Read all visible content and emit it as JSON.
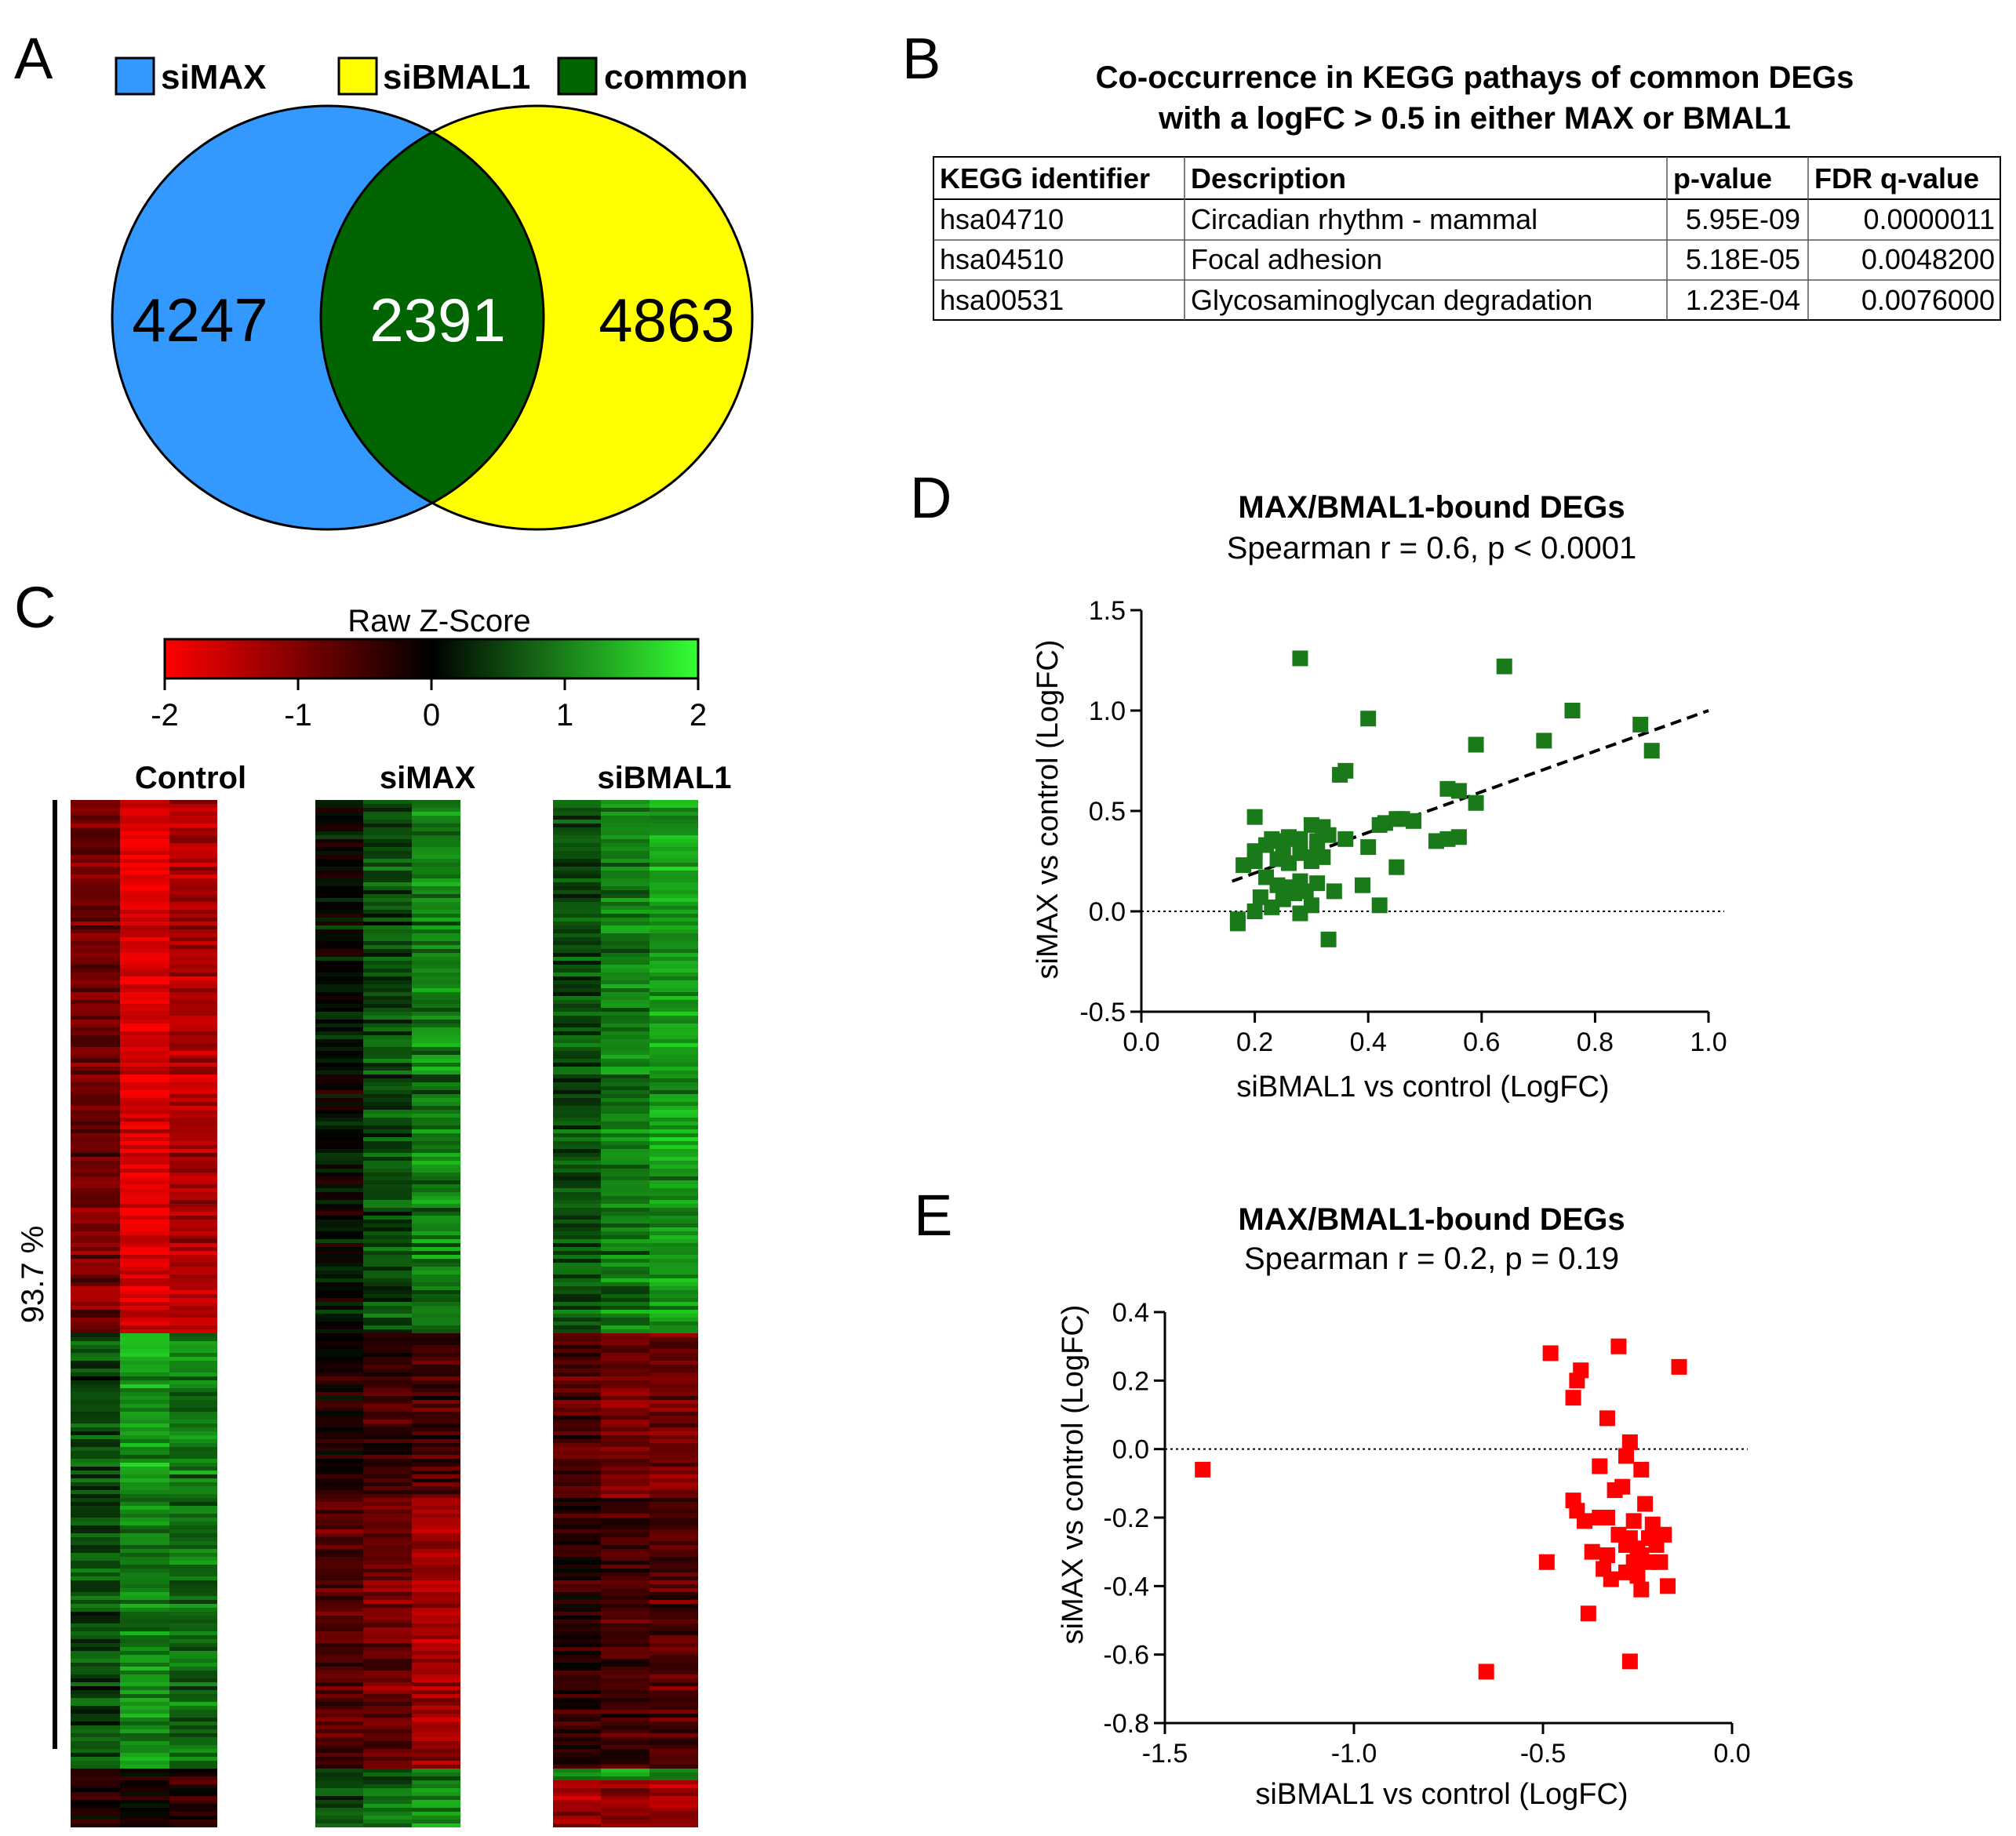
{
  "panels": {
    "a": "A",
    "b": "B",
    "c": "C",
    "d": "D",
    "e": "E"
  },
  "colors": {
    "simax": "#3399ff",
    "sibmal1": "#ffff00",
    "common": "#006400",
    "scatter_d": "#1a7a1a",
    "scatter_e": "#ff0000"
  },
  "venn": {
    "legend": [
      {
        "label": "siMAX",
        "color": "#3399ff"
      },
      {
        "label": "siBMAL1",
        "color": "#ffff00"
      },
      {
        "label": "common",
        "color": "#006400"
      }
    ],
    "counts": {
      "simax": "4247",
      "common": "2391",
      "sibmal1": "4863"
    }
  },
  "kegg": {
    "title_line1": "Co-occurrence in KEGG pathays of common DEGs",
    "title_line2": "with a logFC > 0.5 in either MAX or BMAL1",
    "headers": [
      "KEGG identifier",
      "Description",
      "p-value",
      "FDR q-value"
    ],
    "rows": [
      [
        "hsa04710",
        "Circadian rhythm - mammal",
        "5.95E-09",
        "0.0000011"
      ],
      [
        "hsa04510",
        "Focal adhesion",
        "5.18E-05",
        "0.0048200"
      ],
      [
        "hsa00531",
        "Glycosaminoglycan degradation",
        "1.23E-04",
        "0.0076000"
      ]
    ]
  },
  "heatmap": {
    "colorbar_title": "Raw Z-Score",
    "colorbar_ticks": [
      "-2",
      "-1",
      "0",
      "1",
      "2"
    ],
    "groups": [
      "Control",
      "siMAX",
      "siBMAL1"
    ],
    "percent_label": "93.7 %"
  },
  "chart_data": [
    {
      "type": "scatter",
      "panel": "D",
      "title": "MAX/BMAL1-bound DEGs",
      "subtitle": "Spearman r = 0.6, p < 0.0001",
      "xlabel": "siBMAL1 vs control (LogFC)",
      "ylabel": "siMAX vs control (LogFC)",
      "xlim": [
        0.0,
        1.0
      ],
      "ylim": [
        -0.5,
        1.5
      ],
      "xticks": [
        "0.0",
        "0.2",
        "0.4",
        "0.6",
        "0.8",
        "1.0"
      ],
      "yticks": [
        "-0.5",
        "0.0",
        "0.5",
        "1.0",
        "1.5"
      ],
      "xticks_v": [
        0.0,
        0.2,
        0.4,
        0.6,
        0.8,
        1.0
      ],
      "yticks_v": [
        -0.5,
        0.0,
        0.5,
        1.0,
        1.5
      ],
      "fit_line": [
        [
          0.16,
          0.15
        ],
        [
          1.0,
          1.0
        ]
      ],
      "points": [
        [
          0.28,
          1.26
        ],
        [
          0.64,
          1.22
        ],
        [
          0.76,
          1.0
        ],
        [
          0.4,
          0.96
        ],
        [
          0.88,
          0.93
        ],
        [
          0.71,
          0.85
        ],
        [
          0.9,
          0.8
        ],
        [
          0.59,
          0.83
        ],
        [
          0.36,
          0.7
        ],
        [
          0.35,
          0.68
        ],
        [
          0.54,
          0.61
        ],
        [
          0.56,
          0.6
        ],
        [
          0.59,
          0.54
        ],
        [
          0.2,
          0.47
        ],
        [
          0.45,
          0.46
        ],
        [
          0.46,
          0.46
        ],
        [
          0.48,
          0.45
        ],
        [
          0.43,
          0.44
        ],
        [
          0.42,
          0.43
        ],
        [
          0.3,
          0.43
        ],
        [
          0.32,
          0.42
        ],
        [
          0.33,
          0.38
        ],
        [
          0.26,
          0.37
        ],
        [
          0.23,
          0.36
        ],
        [
          0.27,
          0.36
        ],
        [
          0.24,
          0.35
        ],
        [
          0.28,
          0.36
        ],
        [
          0.31,
          0.35
        ],
        [
          0.36,
          0.36
        ],
        [
          0.54,
          0.36
        ],
        [
          0.52,
          0.35
        ],
        [
          0.56,
          0.37
        ],
        [
          0.22,
          0.33
        ],
        [
          0.31,
          0.32
        ],
        [
          0.4,
          0.32
        ],
        [
          0.2,
          0.3
        ],
        [
          0.25,
          0.3
        ],
        [
          0.28,
          0.29
        ],
        [
          0.3,
          0.27
        ],
        [
          0.24,
          0.26
        ],
        [
          0.2,
          0.25
        ],
        [
          0.18,
          0.23
        ],
        [
          0.26,
          0.24
        ],
        [
          0.3,
          0.25
        ],
        [
          0.32,
          0.27
        ],
        [
          0.45,
          0.22
        ],
        [
          0.22,
          0.17
        ],
        [
          0.28,
          0.15
        ],
        [
          0.31,
          0.14
        ],
        [
          0.24,
          0.13
        ],
        [
          0.26,
          0.12
        ],
        [
          0.34,
          0.1
        ],
        [
          0.27,
          0.09
        ],
        [
          0.29,
          0.1
        ],
        [
          0.39,
          0.13
        ],
        [
          0.21,
          0.07
        ],
        [
          0.25,
          0.06
        ],
        [
          0.23,
          0.02
        ],
        [
          0.3,
          0.03
        ],
        [
          0.42,
          0.03
        ],
        [
          0.2,
          0.0
        ],
        [
          0.28,
          -0.01
        ],
        [
          0.17,
          -0.04
        ],
        [
          0.17,
          -0.06
        ],
        [
          0.33,
          -0.14
        ]
      ]
    },
    {
      "type": "scatter",
      "panel": "E",
      "title": "MAX/BMAL1-bound DEGs",
      "subtitle": "Spearman r = 0.2, p = 0.19",
      "xlabel": "siBMAL1 vs control (LogFC)",
      "ylabel": "siMAX vs control (LogFC)",
      "xlim": [
        -1.5,
        0.0
      ],
      "ylim": [
        -0.8,
        0.4
      ],
      "xticks": [
        "-1.5",
        "-1.0",
        "-0.5",
        "0.0"
      ],
      "yticks": [
        "0.4",
        "0.2",
        "0.0",
        "-0.2",
        "-0.4",
        "-0.6",
        "-0.8"
      ],
      "xticks_v": [
        -1.5,
        -1.0,
        -0.5,
        0.0
      ],
      "yticks_v": [
        0.4,
        0.2,
        0.0,
        -0.2,
        -0.4,
        -0.6,
        -0.8
      ],
      "points": [
        [
          -1.4,
          -0.06
        ],
        [
          -0.48,
          0.28
        ],
        [
          -0.3,
          0.3
        ],
        [
          -0.14,
          0.24
        ],
        [
          -0.4,
          0.23
        ],
        [
          -0.41,
          0.2
        ],
        [
          -0.42,
          0.15
        ],
        [
          -0.33,
          0.09
        ],
        [
          -0.27,
          0.02
        ],
        [
          -0.28,
          -0.02
        ],
        [
          -0.35,
          -0.05
        ],
        [
          -0.24,
          -0.06
        ],
        [
          -0.42,
          -0.15
        ],
        [
          -0.41,
          -0.18
        ],
        [
          -0.29,
          -0.11
        ],
        [
          -0.31,
          -0.12
        ],
        [
          -0.23,
          -0.16
        ],
        [
          -0.33,
          -0.2
        ],
        [
          -0.35,
          -0.2
        ],
        [
          -0.26,
          -0.21
        ],
        [
          -0.21,
          -0.22
        ],
        [
          -0.39,
          -0.21
        ],
        [
          -0.3,
          -0.25
        ],
        [
          -0.18,
          -0.25
        ],
        [
          -0.27,
          -0.26
        ],
        [
          -0.22,
          -0.26
        ],
        [
          -0.25,
          -0.29
        ],
        [
          -0.28,
          -0.28
        ],
        [
          -0.2,
          -0.28
        ],
        [
          -0.37,
          -0.3
        ],
        [
          -0.33,
          -0.31
        ],
        [
          -0.24,
          -0.31
        ],
        [
          -0.22,
          -0.33
        ],
        [
          -0.26,
          -0.33
        ],
        [
          -0.49,
          -0.33
        ],
        [
          -0.34,
          -0.35
        ],
        [
          -0.19,
          -0.33
        ],
        [
          -0.28,
          -0.36
        ],
        [
          -0.32,
          -0.38
        ],
        [
          -0.25,
          -0.37
        ],
        [
          -0.17,
          -0.4
        ],
        [
          -0.24,
          -0.41
        ],
        [
          -0.38,
          -0.48
        ],
        [
          -0.27,
          -0.62
        ],
        [
          -0.65,
          -0.65
        ]
      ]
    }
  ]
}
